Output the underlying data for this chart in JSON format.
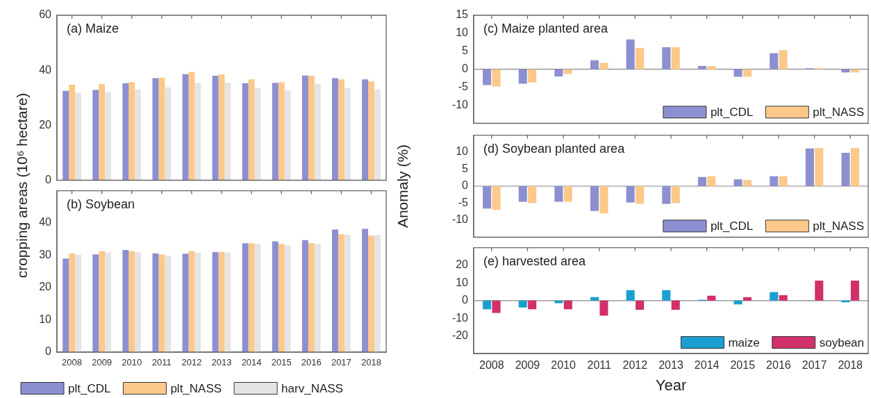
{
  "chart_data": [
    {
      "type": "bar",
      "title": "(a) Maize",
      "ylabel": "cropping areas (10⁶ hectare)",
      "categories": [
        "2008",
        "2009",
        "2010",
        "2011",
        "2012",
        "2013",
        "2014",
        "2015",
        "2016",
        "2017",
        "2018"
      ],
      "series": [
        {
          "color": "#8c8fd0",
          "values": [
            32.5,
            32.8,
            35.3,
            37.1,
            38.6,
            38.0,
            35.3,
            35.4,
            38.1,
            37.1,
            36.7
          ]
        },
        {
          "color": "#fcc98a",
          "values": [
            34.7,
            35.0,
            35.7,
            37.3,
            39.4,
            38.5,
            36.7,
            35.6,
            38.0,
            36.6,
            36.0
          ]
        },
        {
          "color": "#e4e4e4",
          "values": [
            31.8,
            32.1,
            33.0,
            33.8,
            35.4,
            35.4,
            33.6,
            32.7,
            35.1,
            33.5,
            33.1
          ]
        }
      ],
      "ylim": [
        0,
        60
      ],
      "yticks": [
        0,
        20,
        40,
        60
      ],
      "tick_labels": "y"
    },
    {
      "type": "bar",
      "title": "(b) Soybean",
      "categories": [
        "2008",
        "2009",
        "2010",
        "2011",
        "2012",
        "2013",
        "2014",
        "2015",
        "2016",
        "2017",
        "2018"
      ],
      "series": [
        {
          "name": "plt_CDL",
          "color": "#8c8fd0",
          "values": [
            29.0,
            30.3,
            31.6,
            30.6,
            30.5,
            31.0,
            33.7,
            34.3,
            34.7,
            38.0,
            38.2
          ]
        },
        {
          "name": "plt_NASS",
          "color": "#fcc98a",
          "values": [
            30.6,
            31.3,
            31.3,
            30.3,
            31.3,
            31.1,
            33.7,
            33.5,
            33.8,
            36.5,
            36.1
          ]
        },
        {
          "name": "harv_NASS",
          "color": "#e4e4e4",
          "values": [
            30.2,
            30.9,
            31.0,
            29.9,
            30.9,
            30.9,
            33.5,
            33.1,
            33.5,
            36.3,
            36.3
          ]
        }
      ],
      "ylim": [
        0,
        50
      ],
      "yticks": [
        0,
        10,
        20,
        30,
        40
      ],
      "legend": "bottom"
    },
    {
      "type": "bar",
      "title": "(c) Maize planted area",
      "categories": [
        "2008",
        "2009",
        "2010",
        "2011",
        "2012",
        "2013",
        "2014",
        "2015",
        "2016",
        "2017",
        "2018"
      ],
      "series": [
        {
          "name": "plt_CDL",
          "color": "#8c8fd0",
          "values": [
            -4.4,
            -4.0,
            -2.0,
            2.5,
            8.3,
            6.1,
            0.9,
            -2.1,
            4.5,
            0.3,
            -0.9
          ]
        },
        {
          "name": "plt_NASS",
          "color": "#fcc98a",
          "values": [
            -4.8,
            -3.7,
            -1.3,
            1.8,
            5.9,
            6.1,
            0.9,
            -2.1,
            5.3,
            0.3,
            -0.9
          ]
        }
      ],
      "ylim": [
        -15,
        15
      ],
      "yticks": [
        -10,
        -5,
        0,
        5,
        10,
        15
      ],
      "tick_labels": "y",
      "legend": "bottom right"
    },
    {
      "type": "bar",
      "title": "(d) Soybean planted area",
      "ylabel": "Anomaly (%)",
      "categories": [
        "2008",
        "2009",
        "2010",
        "2011",
        "2012",
        "2013",
        "2014",
        "2015",
        "2016",
        "2017",
        "2018"
      ],
      "series": [
        {
          "name": "plt_CDL",
          "color": "#8c8fd0",
          "values": [
            -6.6,
            -4.6,
            -4.6,
            -7.3,
            -4.8,
            -5.2,
            2.7,
            2.0,
            2.9,
            11.1,
            9.8
          ]
        },
        {
          "name": "plt_NASS",
          "color": "#fcc98a",
          "values": [
            -7.0,
            -5.0,
            -4.6,
            -8.0,
            -5.2,
            -5.0,
            2.9,
            1.8,
            2.9,
            11.2,
            11.2
          ]
        }
      ],
      "ylim": [
        -15,
        15
      ],
      "yticks": [
        -10,
        -5,
        0,
        5,
        10
      ],
      "tick_labels": "y",
      "legend": "bottom right"
    },
    {
      "type": "bar",
      "title": "(e) harvested area",
      "xlabel": "Year",
      "categories": [
        "2008",
        "2009",
        "2010",
        "2011",
        "2012",
        "2013",
        "2014",
        "2015",
        "2016",
        "2017",
        "2018"
      ],
      "series": [
        {
          "name": "maize",
          "color": "#1a9fd0",
          "values": [
            -4.9,
            -3.9,
            -1.5,
            2.0,
            5.9,
            5.9,
            0.5,
            -2.1,
            4.8,
            0.2,
            -1.0
          ]
        },
        {
          "name": "soybean",
          "color": "#d1306a",
          "values": [
            -7.0,
            -4.9,
            -4.9,
            -8.5,
            -5.2,
            -5.2,
            2.8,
            2.0,
            3.1,
            11.3,
            11.3
          ]
        }
      ],
      "ylim": [
        -30,
        30
      ],
      "yticks": [
        -20,
        -10,
        0,
        10,
        20
      ],
      "legend": "bottom right"
    }
  ]
}
